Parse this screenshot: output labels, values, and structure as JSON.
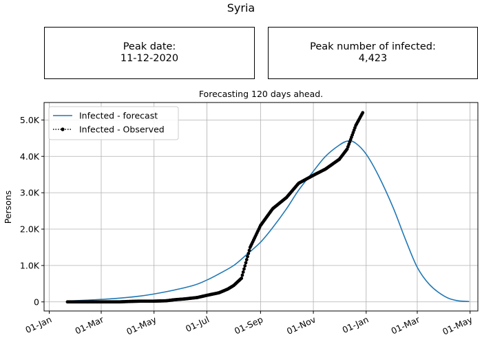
{
  "header": {
    "title": "Syria",
    "peak_date_label": "Peak date:",
    "peak_date_value": "11-12-2020",
    "peak_infected_label": "Peak number of infected:",
    "peak_infected_value": "4,423"
  },
  "colors": {
    "forecast": "#1f77b4",
    "observed": "#000000",
    "grid": "#b0b0b0"
  },
  "chart_data": {
    "type": "line",
    "title": "Forecasting 120 days ahead.",
    "xlabel": "",
    "ylabel": "Persons",
    "x_ticks": [
      "01-Jan",
      "01-Mar",
      "01-May",
      "01-Jul",
      "01-Sep",
      "01-Nov",
      "01-Jan",
      "01-Mar",
      "01-May"
    ],
    "x_tick_dates": [
      "2020-01-01",
      "2020-03-01",
      "2020-05-01",
      "2020-07-01",
      "2020-09-01",
      "2020-11-01",
      "2021-01-01",
      "2021-03-01",
      "2021-05-01"
    ],
    "y_ticks": [
      0,
      1000,
      2000,
      3000,
      4000,
      5000
    ],
    "y_tick_labels": [
      "0",
      "1.0K",
      "2.0K",
      "3.0K",
      "4.0K",
      "5.0K"
    ],
    "xlim": [
      "2019-12-26",
      "2021-05-10"
    ],
    "ylim": [
      -250,
      5480
    ],
    "grid": true,
    "legend_position": "top-left",
    "series": [
      {
        "name": "Infected - forecast",
        "style": "solid",
        "x": [
          "2020-01-22",
          "2020-02-15",
          "2020-03-15",
          "2020-04-15",
          "2020-05-15",
          "2020-06-15",
          "2020-07-01",
          "2020-07-15",
          "2020-08-01",
          "2020-08-15",
          "2020-09-01",
          "2020-09-15",
          "2020-10-01",
          "2020-10-15",
          "2020-11-01",
          "2020-11-15",
          "2020-12-01",
          "2020-12-11",
          "2020-12-20",
          "2021-01-01",
          "2021-01-15",
          "2021-02-01",
          "2021-02-15",
          "2021-03-01",
          "2021-03-15",
          "2021-04-01",
          "2021-04-15",
          "2021-04-30"
        ],
        "y": [
          20,
          50,
          90,
          160,
          280,
          450,
          600,
          770,
          1000,
          1280,
          1640,
          2040,
          2560,
          3070,
          3590,
          4000,
          4310,
          4423,
          4360,
          4060,
          3480,
          2600,
          1740,
          950,
          480,
          160,
          40,
          10
        ]
      },
      {
        "name": "Infected - Observed",
        "style": "dotted-markers",
        "x": [
          "2020-01-22",
          "2020-02-15",
          "2020-03-01",
          "2020-03-22",
          "2020-04-01",
          "2020-04-15",
          "2020-05-01",
          "2020-05-15",
          "2020-05-25",
          "2020-06-05",
          "2020-06-20",
          "2020-07-01",
          "2020-07-15",
          "2020-07-25",
          "2020-08-01",
          "2020-08-10",
          "2020-08-20",
          "2020-09-01",
          "2020-09-15",
          "2020-10-01",
          "2020-10-15",
          "2020-11-01",
          "2020-11-15",
          "2020-12-01",
          "2020-12-10",
          "2020-12-20",
          "2020-12-28"
        ],
        "y": [
          0,
          0,
          0,
          0,
          10,
          20,
          20,
          30,
          60,
          80,
          120,
          180,
          250,
          350,
          450,
          650,
          1500,
          2100,
          2560,
          2870,
          3260,
          3480,
          3650,
          3920,
          4200,
          4850,
          5200
        ]
      }
    ]
  }
}
